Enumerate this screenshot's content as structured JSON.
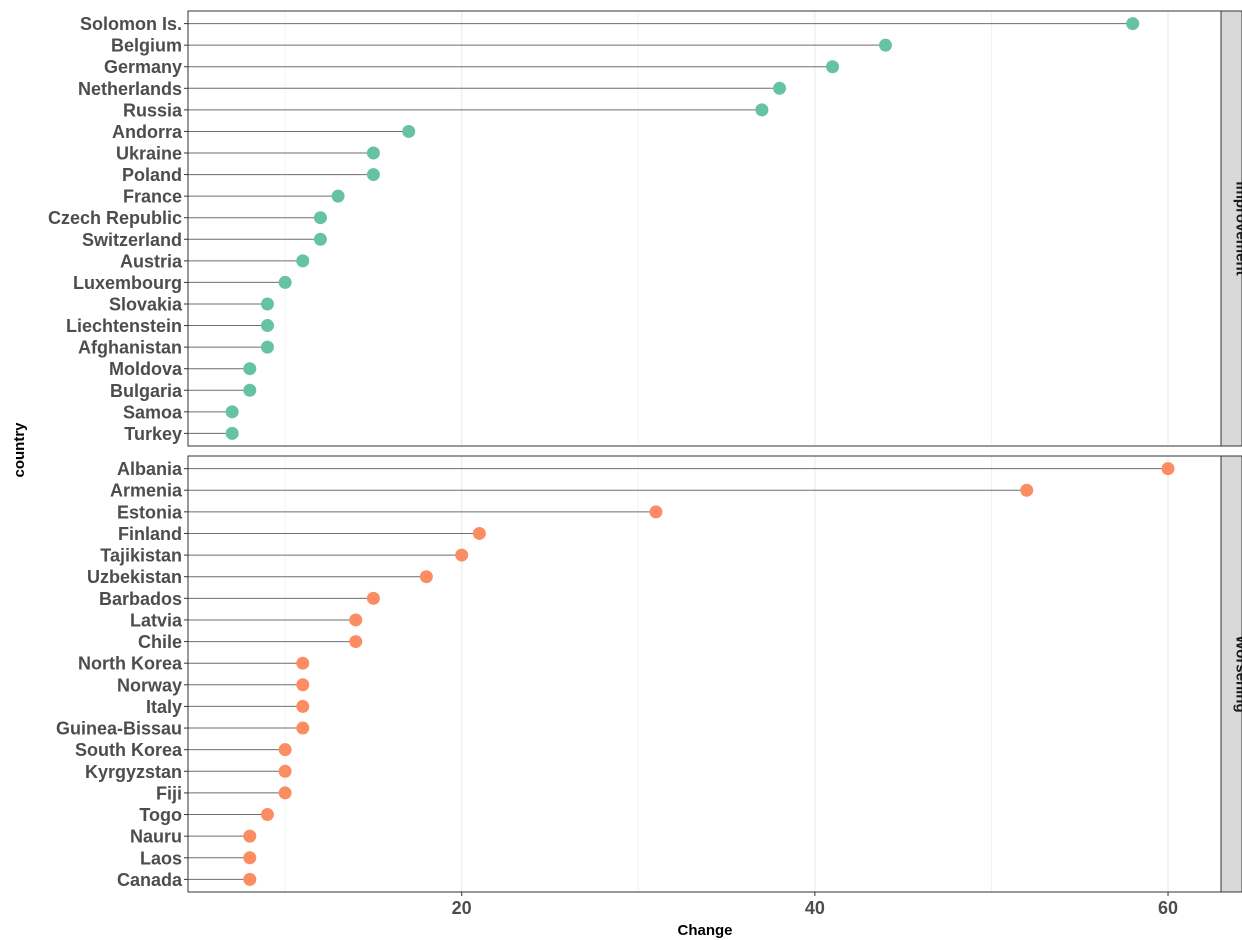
{
  "chart_data": {
    "type": "lollipop",
    "xlabel": "Change",
    "ylabel": "country",
    "xlim": [
      4.5,
      63
    ],
    "xticks": [
      20,
      40,
      60
    ],
    "grid": true,
    "colors": {
      "Improvement": "#66c2a5",
      "Worsening": "#fc8d62"
    },
    "panels": [
      {
        "name": "Improvement",
        "categories": [
          "Solomon Is.",
          "Belgium",
          "Germany",
          "Netherlands",
          "Russia",
          "Andorra",
          "Ukraine",
          "Poland",
          "France",
          "Czech Republic",
          "Switzerland",
          "Austria",
          "Luxembourg",
          "Slovakia",
          "Liechtenstein",
          "Afghanistan",
          "Moldova",
          "Bulgaria",
          "Samoa",
          "Turkey"
        ],
        "values": [
          58,
          44,
          41,
          38,
          37,
          17,
          15,
          15,
          13,
          12,
          12,
          11,
          10,
          9,
          9,
          9,
          8,
          8,
          7,
          7
        ]
      },
      {
        "name": "Worsening",
        "categories": [
          "Albania",
          "Armenia",
          "Estonia",
          "Finland",
          "Tajikistan",
          "Uzbekistan",
          "Barbados",
          "Latvia",
          "Chile",
          "North Korea",
          "Norway",
          "Italy",
          "Guinea-Bissau",
          "South Korea",
          "Kyrgyzstan",
          "Fiji",
          "Togo",
          "Nauru",
          "Laos",
          "Canada"
        ],
        "values": [
          60,
          52,
          31,
          21,
          20,
          18,
          15,
          14,
          14,
          11,
          11,
          11,
          11,
          10,
          10,
          10,
          9,
          8,
          8,
          8
        ]
      }
    ]
  }
}
